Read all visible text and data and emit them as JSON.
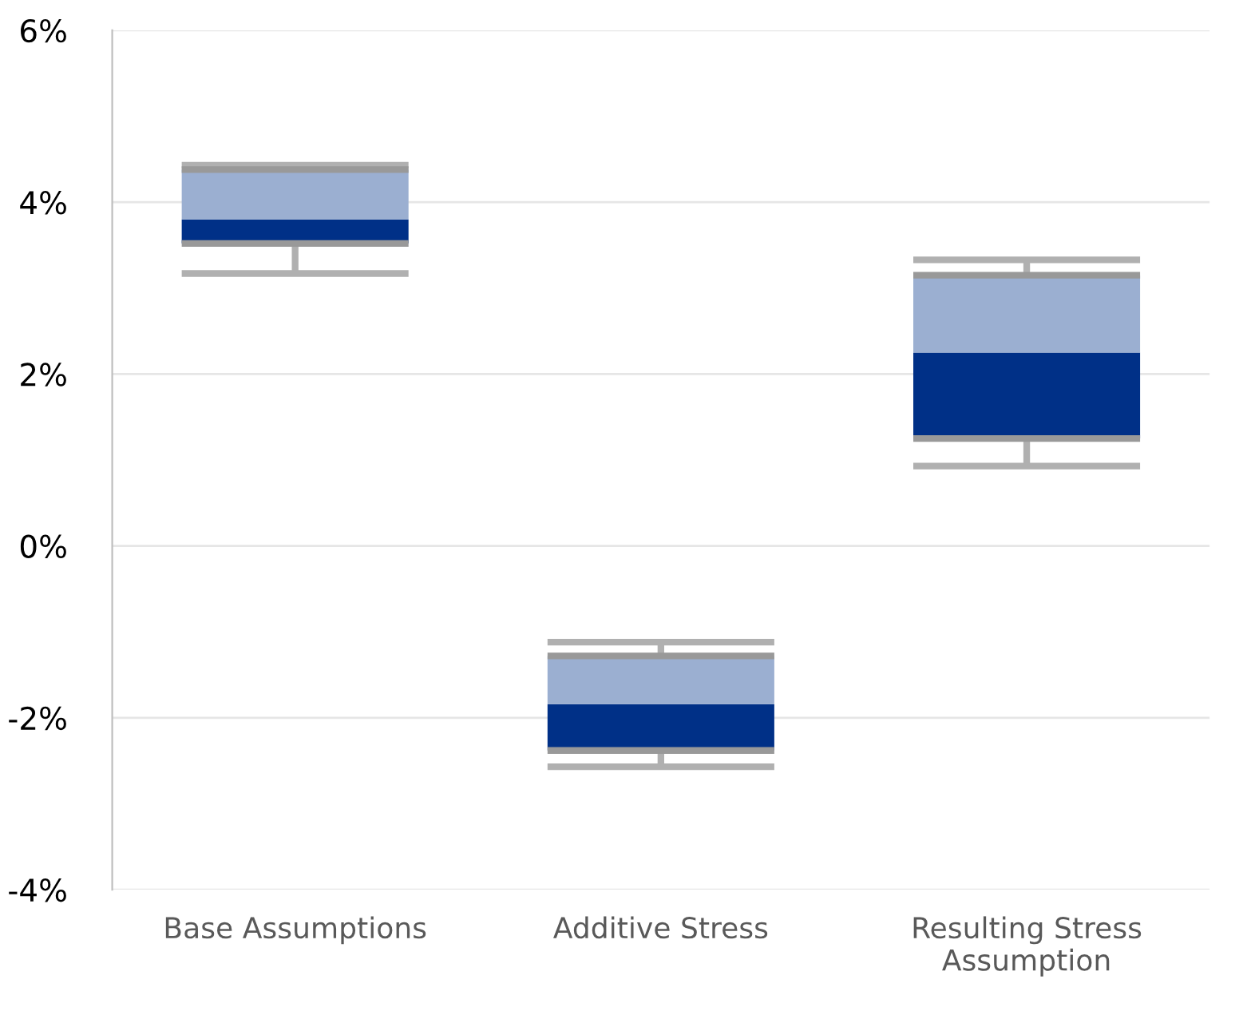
{
  "chart_data": {
    "type": "box",
    "categories": [
      "Base Assumptions",
      "Additive Stress",
      "Resulting Stress\nAssumption"
    ],
    "boxes": [
      {
        "low": 3.17,
        "q1": 3.52,
        "median": 3.8,
        "q3": 4.38,
        "high": 4.43
      },
      {
        "low": -2.57,
        "q1": -2.38,
        "median": -1.84,
        "q3": -1.28,
        "high": -1.12
      },
      {
        "low": 0.93,
        "q1": 1.25,
        "median": 2.25,
        "q3": 3.15,
        "high": 3.33
      }
    ],
    "colors": [
      [
        "#003087",
        "#9bafd1"
      ],
      [
        "#003087",
        "#9bafd1"
      ],
      [
        "#003087",
        "#9bafd1"
      ]
    ],
    "ylim": [
      -4,
      6
    ],
    "yticks": [
      {
        "value": -4,
        "label": "-4%"
      },
      {
        "value": -2,
        "label": "-2%"
      },
      {
        "value": 0,
        "label": "0%"
      },
      {
        "value": 2,
        "label": "2%"
      },
      {
        "value": 4,
        "label": "4%"
      },
      {
        "value": 6,
        "label": "6%"
      }
    ],
    "grid": "y"
  }
}
